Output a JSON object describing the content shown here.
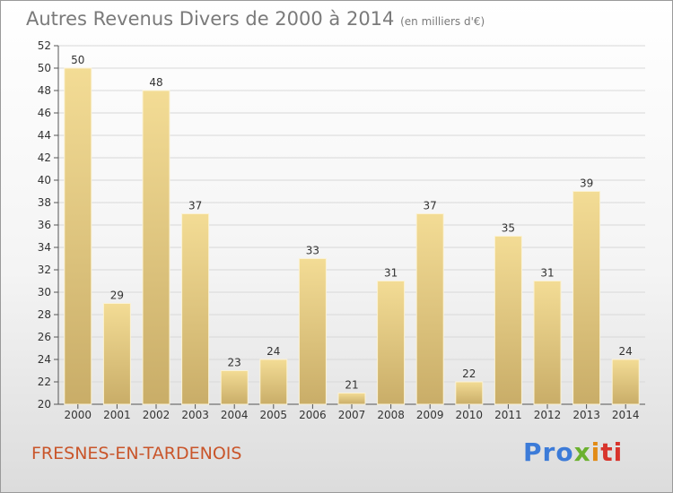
{
  "title": "Autres Revenus Divers de 2000 à 2014",
  "title_unit": "(en milliers d'€)",
  "place_name": "FRESNES-EN-TARDENOIS",
  "logo": {
    "text": "Proxiti",
    "colors": [
      "#3c7bd8",
      "#6bb12e",
      "#e28b16",
      "#d8342c"
    ]
  },
  "colors": {
    "bar_light": "#f3dc95",
    "bar_dark": "#c9ad68",
    "axis": "#555555",
    "grid": "#d8d8d8",
    "text": "#333333"
  },
  "chart_data": {
    "type": "bar",
    "categories": [
      "2000",
      "2001",
      "2002",
      "2003",
      "2004",
      "2005",
      "2006",
      "2007",
      "2008",
      "2009",
      "2010",
      "2011",
      "2012",
      "2013",
      "2014"
    ],
    "values": [
      50,
      29,
      48,
      37,
      23,
      24,
      33,
      21,
      31,
      37,
      22,
      35,
      31,
      39,
      24
    ],
    "title": "Autres Revenus Divers de 2000 à 2014",
    "ylim": [
      20,
      52
    ],
    "yticks": [
      20,
      22,
      24,
      26,
      28,
      30,
      32,
      34,
      36,
      38,
      40,
      42,
      44,
      46,
      48,
      50,
      52
    ],
    "grid": true,
    "data_labels": true
  }
}
